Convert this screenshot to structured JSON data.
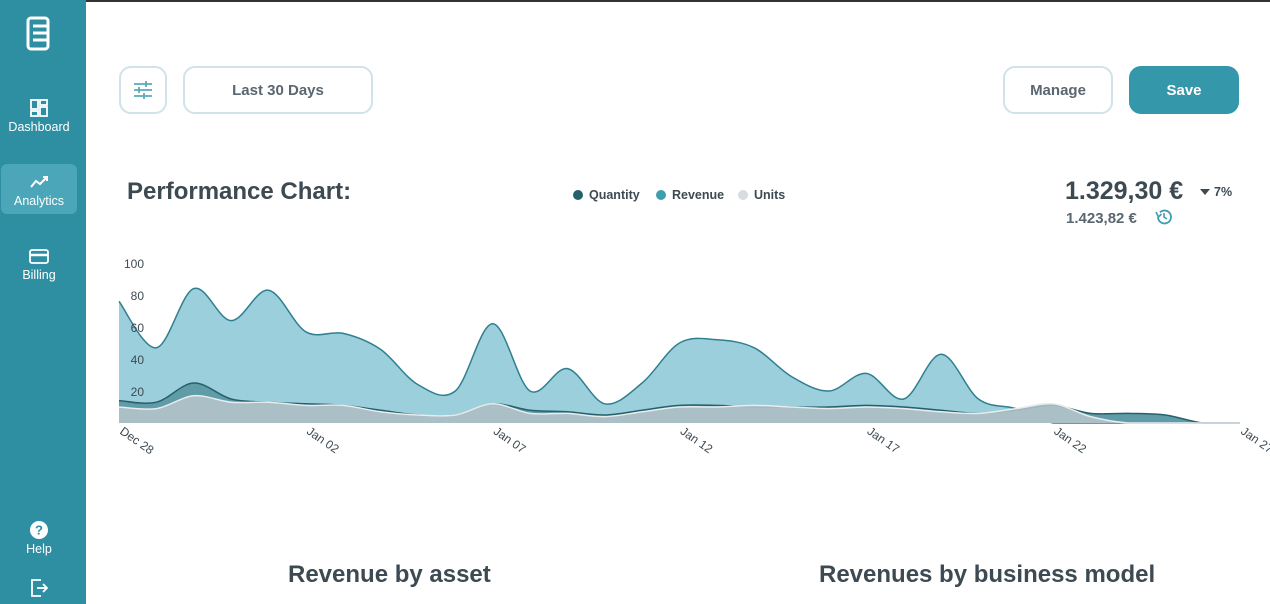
{
  "sidebar": {
    "items": [
      {
        "label": "Dashboard",
        "icon": "dashboard-icon"
      },
      {
        "label": "Analytics",
        "icon": "analytics-icon"
      },
      {
        "label": "Billing",
        "icon": "billing-icon"
      },
      {
        "label": "Help",
        "icon": "help-icon"
      }
    ],
    "logout_icon": "logout-icon"
  },
  "toolbar": {
    "filter_icon": "sliders-icon",
    "date_range_label": "Last 30 Days",
    "manage_label": "Manage",
    "save_label": "Save"
  },
  "summary": {
    "title": "Performance Chart:",
    "current_value": "1.329,30 €",
    "previous_value": "1.423,82 €",
    "change": "7%",
    "change_direction": "down"
  },
  "sections": {
    "revenue_by_asset": "Revenue by asset",
    "revenues_by_business_model": "Revenues by business model"
  },
  "colors": {
    "sidebar": "#2e8fa3",
    "primary": "#3497aa",
    "quantity": "#26606b",
    "revenue": "#3d9eb0",
    "units": "#d8dcdf"
  },
  "chart_data": {
    "type": "area",
    "ylim": [
      0,
      100
    ],
    "yticks": [
      20,
      40,
      60,
      80,
      100
    ],
    "xticks": [
      "Dec 28",
      "Jan 02",
      "Jan 07",
      "Jan 12",
      "Jan 17",
      "Jan 22",
      "Jan 27"
    ],
    "x": [
      "Dec 28",
      "Dec 29",
      "Dec 30",
      "Dec 31",
      "Jan 01",
      "Jan 02",
      "Jan 03",
      "Jan 04",
      "Jan 05",
      "Jan 06",
      "Jan 07",
      "Jan 08",
      "Jan 09",
      "Jan 10",
      "Jan 11",
      "Jan 12",
      "Jan 13",
      "Jan 14",
      "Jan 15",
      "Jan 16",
      "Jan 17",
      "Jan 18",
      "Jan 19",
      "Jan 20",
      "Jan 21",
      "Jan 22",
      "Jan 23",
      "Jan 24",
      "Jan 25",
      "Jan 26",
      "Jan 27"
    ],
    "series": [
      {
        "name": "Revenue",
        "values": [
          76,
          47,
          84,
          64,
          83,
          57,
          56,
          46,
          24,
          20,
          62,
          20,
          34,
          12,
          25,
          50,
          52,
          47,
          29,
          20,
          31,
          15,
          43,
          15,
          9,
          0,
          0,
          0,
          0,
          0,
          0
        ]
      },
      {
        "name": "Quantity",
        "values": [
          14,
          13,
          25,
          15,
          13,
          12,
          11,
          8,
          5,
          5,
          12,
          8,
          7,
          5,
          8,
          11,
          11,
          10,
          10,
          10,
          11,
          10,
          8,
          6,
          8,
          11,
          6,
          6,
          5,
          0,
          0
        ]
      },
      {
        "name": "Units",
        "values": [
          10,
          9,
          17,
          13,
          13,
          11,
          11,
          7,
          5,
          5,
          12,
          6,
          6,
          4,
          7,
          10,
          10,
          11,
          10,
          9,
          10,
          9,
          7,
          6,
          9,
          12,
          4,
          0,
          0,
          0,
          0
        ]
      }
    ],
    "legend_position": "top-center"
  }
}
